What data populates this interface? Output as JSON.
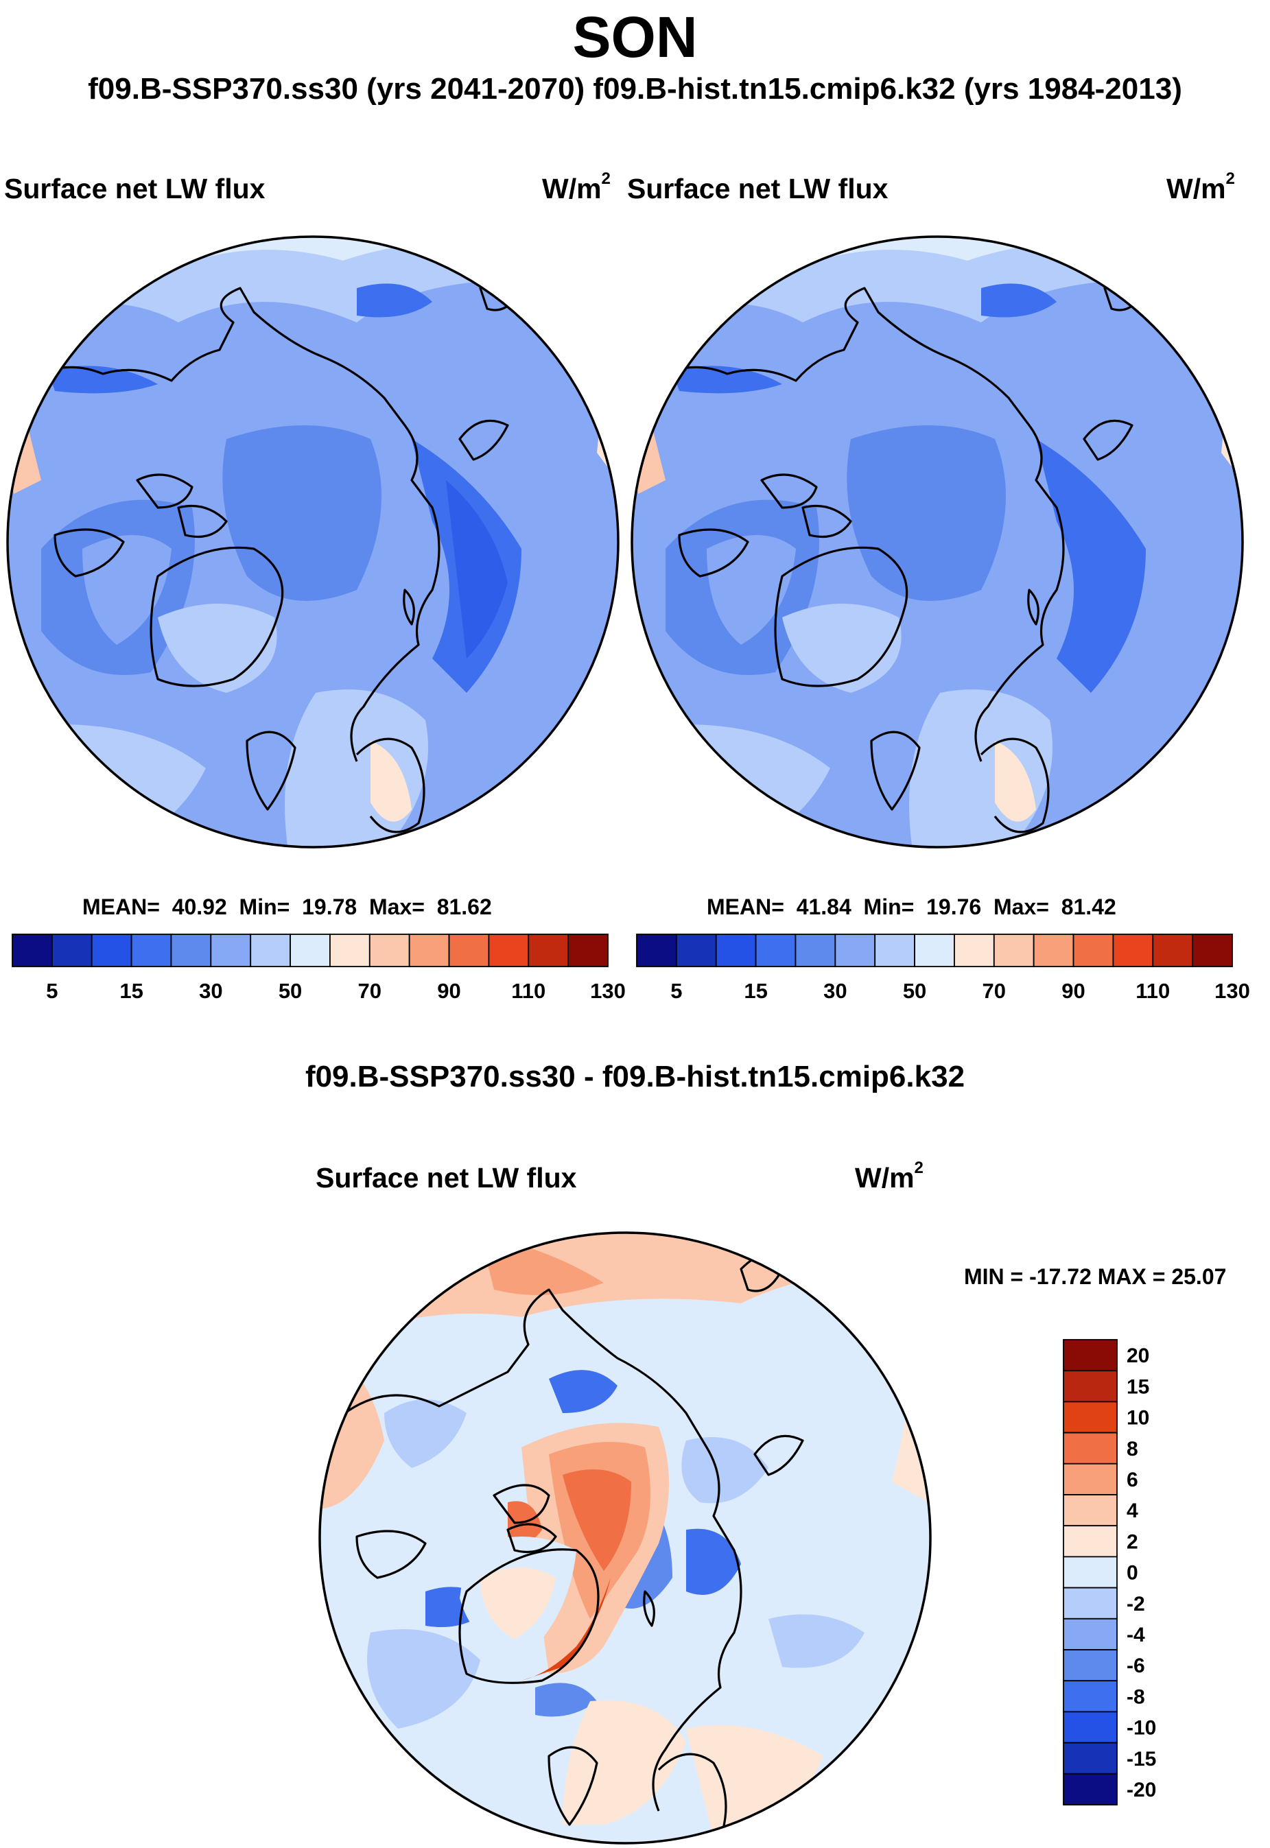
{
  "title": "SON",
  "subtitle": "f09.B-SSP370.ss30 (yrs 2041-2070)  f09.B-hist.tn15.cmip6.k32 (yrs 1984-2013)",
  "panels": [
    {
      "variable": "Surface net LW flux",
      "unit_base": "W/m",
      "unit_exp": "2",
      "mean_label": "MEAN=",
      "mean": "40.92",
      "min_label": "Min=",
      "min": "19.78",
      "max_label": "Max=",
      "max": "81.62"
    },
    {
      "variable": "Surface net LW flux",
      "unit_base": "W/m",
      "unit_exp": "2",
      "mean_label": "MEAN=",
      "mean": "41.84",
      "min_label": "Min=",
      "min": "19.76",
      "max_label": "Max=",
      "max": "81.42"
    }
  ],
  "abs_colorbar": {
    "colors": [
      "#0b0d85",
      "#1633b8",
      "#2452e6",
      "#3d6fee",
      "#5e8aee",
      "#87a8f4",
      "#b5cdfb",
      "#dcecfd",
      "#fde6d6",
      "#fcc8ad",
      "#f7a07a",
      "#f06f45",
      "#e8451e",
      "#c22a0f",
      "#8a0b06"
    ],
    "tick_labels": [
      "5",
      "15",
      "30",
      "50",
      "70",
      "90",
      "110",
      "130"
    ]
  },
  "diff": {
    "title": "f09.B-SSP370.ss30 - f09.B-hist.tn15.cmip6.k32",
    "variable": "Surface net LW flux",
    "unit_base": "W/m",
    "unit_exp": "2",
    "minmax": "MIN = -17.72 MAX =  25.07",
    "colorbar_colors_top_to_bottom": [
      "#8a0b06",
      "#b92711",
      "#e14213",
      "#f06f45",
      "#f7a07a",
      "#fcc8ad",
      "#fde6d6",
      "#dcecfd",
      "#b5cdfb",
      "#87a8f4",
      "#5e8aee",
      "#3d6fee",
      "#2452e6",
      "#1633b8",
      "#0b0d85"
    ],
    "tick_labels_top_to_bottom": [
      "20",
      "15",
      "10",
      "8",
      "6",
      "4",
      "2",
      "0",
      "-2",
      "-4",
      "-6",
      "-8",
      "-10",
      "-15",
      "-20"
    ]
  }
}
